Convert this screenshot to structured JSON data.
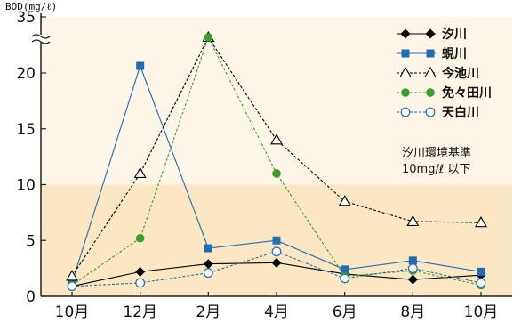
{
  "chart_data": {
    "type": "line",
    "y_unit": "BOD(mg/ℓ)",
    "categories": [
      "10月",
      "12月",
      "2月",
      "4月",
      "6月",
      "8月",
      "10月"
    ],
    "ylim": [
      0,
      35
    ],
    "y_axis_break": [
      25,
      34
    ],
    "y_ticks": [
      "0",
      "5",
      "10",
      "15",
      "20",
      "35"
    ],
    "grid": false,
    "legend_position": "top-right",
    "standard_band": {
      "from": 0,
      "to": 10,
      "color": "#fbe7c2"
    },
    "standard_note": [
      "汐川環境基準",
      "10mg/ℓ 以下"
    ],
    "series": [
      {
        "name": "汐川",
        "values": [
          0.9,
          2.2,
          2.9,
          3.0,
          2.0,
          1.5,
          1.9
        ],
        "color": "#000000",
        "marker": "diamond-filled",
        "dash": "solid"
      },
      {
        "name": "蜆川",
        "values": [
          1.2,
          21.0,
          4.3,
          5.0,
          2.4,
          3.2,
          2.2
        ],
        "color": "#1f6db5",
        "marker": "square-filled",
        "dash": "solid"
      },
      {
        "name": "今池川",
        "values": [
          1.8,
          11.0,
          34.0,
          14.0,
          8.5,
          6.7,
          6.6
        ],
        "color": "#000000",
        "marker": "triangle-open",
        "dash": "dashed"
      },
      {
        "name": "免々田川",
        "values": [
          1.0,
          5.2,
          33.5,
          11.0,
          1.8,
          2.3,
          1.0
        ],
        "color": "#3a9e2a",
        "marker": "circle-filled",
        "dash": "dashed"
      },
      {
        "name": "天白川",
        "values": [
          0.9,
          1.2,
          2.1,
          4.0,
          1.6,
          2.5,
          1.2
        ],
        "color": "#1f6db5",
        "marker": "circle-open",
        "dash": "dashed"
      }
    ]
  }
}
